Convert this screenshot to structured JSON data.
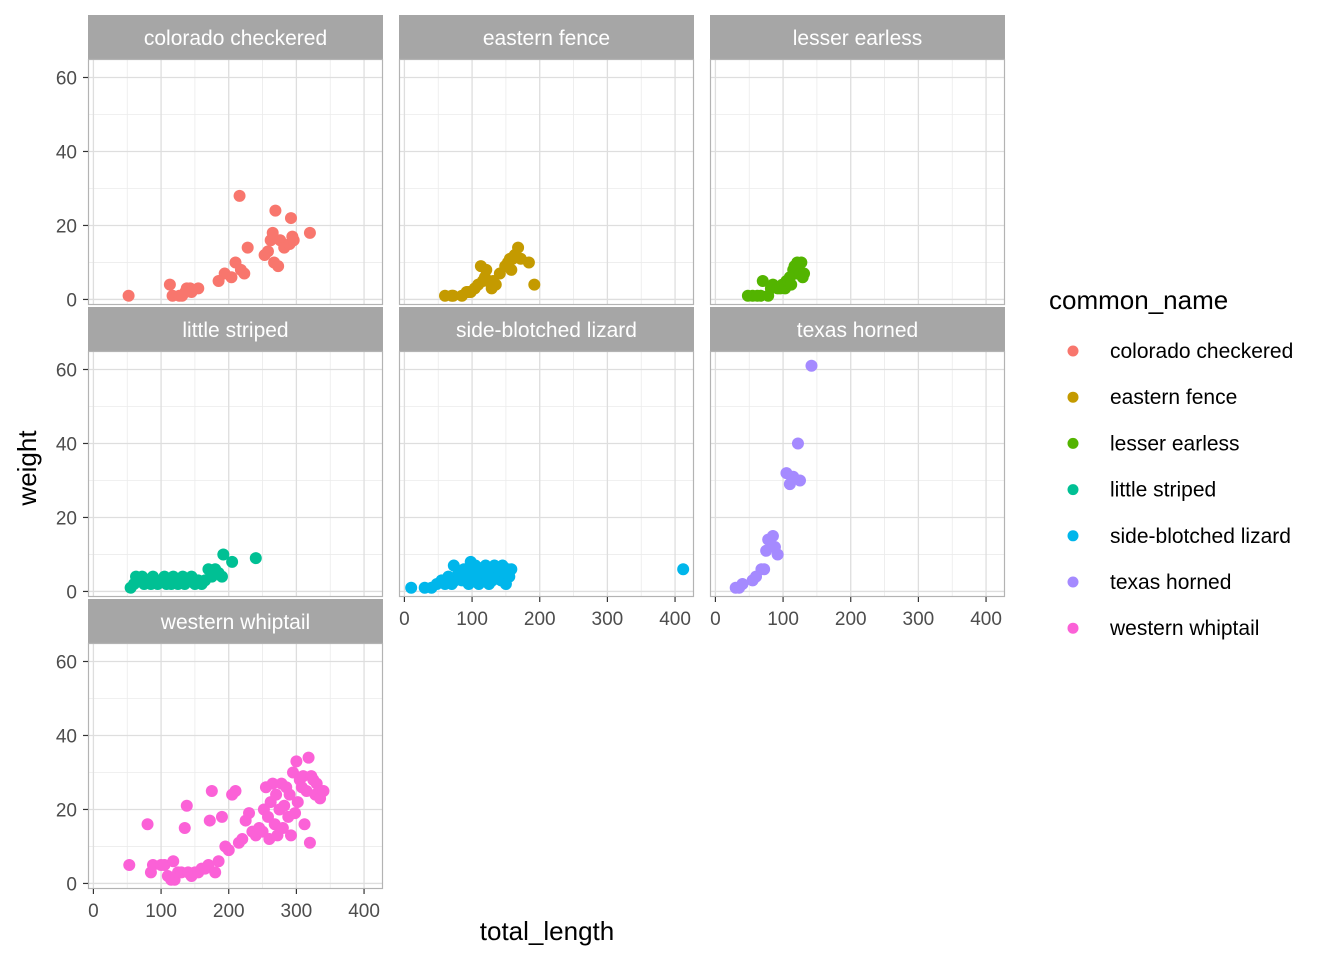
{
  "chart_data": {
    "type": "scatter",
    "xlabel": "total_length",
    "ylabel": "weight",
    "xlim": [
      -8,
      428
    ],
    "ylim": [
      -1.5,
      65
    ],
    "xticks": [
      0,
      100,
      200,
      300,
      400
    ],
    "yticks": [
      0,
      20,
      40,
      60
    ],
    "grid": true,
    "legend": {
      "title": "common_name",
      "position": "right"
    },
    "series": [
      {
        "name": "colorado checkered",
        "color": "#F8766D",
        "points": [
          [
            52,
            1
          ],
          [
            113,
            4
          ],
          [
            117,
            1
          ],
          [
            127,
            1
          ],
          [
            131,
            1
          ],
          [
            136,
            2
          ],
          [
            138,
            3
          ],
          [
            143,
            3
          ],
          [
            145,
            2
          ],
          [
            155,
            3
          ],
          [
            185,
            5
          ],
          [
            194,
            7
          ],
          [
            204,
            6
          ],
          [
            210,
            10
          ],
          [
            216,
            28
          ],
          [
            218,
            8
          ],
          [
            223,
            7
          ],
          [
            228,
            14
          ],
          [
            253,
            12
          ],
          [
            258,
            13
          ],
          [
            262,
            16
          ],
          [
            265,
            18
          ],
          [
            267,
            10
          ],
          [
            269,
            24
          ],
          [
            273,
            9
          ],
          [
            276,
            16
          ],
          [
            282,
            14
          ],
          [
            290,
            15
          ],
          [
            292,
            22
          ],
          [
            294,
            17
          ],
          [
            296,
            16
          ],
          [
            320,
            18
          ]
        ]
      },
      {
        "name": "eastern fence",
        "color": "#C49A00",
        "points": [
          [
            60,
            1
          ],
          [
            70,
            1
          ],
          [
            72,
            1
          ],
          [
            85,
            1
          ],
          [
            92,
            2
          ],
          [
            95,
            2
          ],
          [
            98,
            2
          ],
          [
            104,
            3
          ],
          [
            109,
            4
          ],
          [
            113,
            9
          ],
          [
            116,
            5
          ],
          [
            119,
            6
          ],
          [
            121,
            8
          ],
          [
            124,
            5
          ],
          [
            129,
            3
          ],
          [
            131,
            5
          ],
          [
            135,
            4
          ],
          [
            141,
            7
          ],
          [
            149,
            9
          ],
          [
            153,
            10
          ],
          [
            156,
            11
          ],
          [
            158,
            8
          ],
          [
            160,
            11
          ],
          [
            163,
            12
          ],
          [
            168,
            14
          ],
          [
            172,
            11
          ],
          [
            184,
            10
          ],
          [
            192,
            4
          ]
        ]
      },
      {
        "name": "lesser earless",
        "color": "#53B400",
        "points": [
          [
            48,
            1
          ],
          [
            55,
            1
          ],
          [
            62,
            1
          ],
          [
            67,
            1
          ],
          [
            70,
            5
          ],
          [
            78,
            1
          ],
          [
            82,
            3
          ],
          [
            85,
            4
          ],
          [
            92,
            3
          ],
          [
            96,
            3
          ],
          [
            99,
            4
          ],
          [
            103,
            3
          ],
          [
            105,
            5
          ],
          [
            108,
            5
          ],
          [
            110,
            6
          ],
          [
            112,
            4
          ],
          [
            115,
            8
          ],
          [
            117,
            9
          ],
          [
            119,
            7
          ],
          [
            121,
            10
          ],
          [
            123,
            8
          ],
          [
            125,
            7
          ],
          [
            127,
            10
          ],
          [
            129,
            6
          ],
          [
            131,
            7
          ]
        ]
      },
      {
        "name": "little striped",
        "color": "#00C094",
        "points": [
          [
            55,
            1
          ],
          [
            60,
            2
          ],
          [
            63,
            4
          ],
          [
            68,
            3
          ],
          [
            72,
            4
          ],
          [
            75,
            2
          ],
          [
            80,
            3
          ],
          [
            85,
            2
          ],
          [
            88,
            4
          ],
          [
            92,
            3
          ],
          [
            95,
            2
          ],
          [
            100,
            3
          ],
          [
            105,
            4
          ],
          [
            108,
            2
          ],
          [
            112,
            3
          ],
          [
            115,
            2
          ],
          [
            118,
            4
          ],
          [
            122,
            3
          ],
          [
            125,
            2
          ],
          [
            128,
            3
          ],
          [
            132,
            4
          ],
          [
            135,
            2
          ],
          [
            140,
            3
          ],
          [
            145,
            4
          ],
          [
            150,
            2
          ],
          [
            155,
            3
          ],
          [
            160,
            2
          ],
          [
            165,
            3
          ],
          [
            170,
            6
          ],
          [
            175,
            4
          ],
          [
            180,
            6
          ],
          [
            185,
            5
          ],
          [
            190,
            4
          ],
          [
            192,
            10
          ],
          [
            205,
            8
          ],
          [
            240,
            9
          ]
        ]
      },
      {
        "name": "side-blotched lizard",
        "color": "#00B6EB",
        "points": [
          [
            10,
            1
          ],
          [
            30,
            1
          ],
          [
            40,
            1
          ],
          [
            48,
            2
          ],
          [
            55,
            3
          ],
          [
            60,
            2
          ],
          [
            65,
            4
          ],
          [
            70,
            2
          ],
          [
            73,
            7
          ],
          [
            75,
            3
          ],
          [
            80,
            5
          ],
          [
            85,
            3
          ],
          [
            88,
            6
          ],
          [
            92,
            4
          ],
          [
            95,
            2
          ],
          [
            98,
            8
          ],
          [
            100,
            5
          ],
          [
            103,
            3
          ],
          [
            105,
            7
          ],
          [
            108,
            4
          ],
          [
            110,
            2
          ],
          [
            113,
            6
          ],
          [
            116,
            3
          ],
          [
            118,
            5
          ],
          [
            120,
            7
          ],
          [
            123,
            4
          ],
          [
            125,
            2
          ],
          [
            128,
            6
          ],
          [
            130,
            3
          ],
          [
            133,
            7
          ],
          [
            135,
            5
          ],
          [
            138,
            4
          ],
          [
            140,
            6
          ],
          [
            143,
            3
          ],
          [
            145,
            7
          ],
          [
            148,
            5
          ],
          [
            150,
            2
          ],
          [
            153,
            6
          ],
          [
            155,
            4
          ],
          [
            158,
            6
          ],
          [
            412,
            6
          ]
        ]
      },
      {
        "name": "texas horned",
        "color": "#A58AFF",
        "points": [
          [
            30,
            1
          ],
          [
            35,
            1
          ],
          [
            40,
            2
          ],
          [
            55,
            3
          ],
          [
            60,
            4
          ],
          [
            68,
            6
          ],
          [
            72,
            6
          ],
          [
            75,
            11
          ],
          [
            78,
            14
          ],
          [
            85,
            15
          ],
          [
            88,
            12
          ],
          [
            92,
            10
          ],
          [
            105,
            32
          ],
          [
            110,
            29
          ],
          [
            115,
            31
          ],
          [
            122,
            40
          ],
          [
            125,
            30
          ],
          [
            142,
            61
          ]
        ]
      },
      {
        "name": "western whiptail",
        "color": "#FB61D7",
        "points": [
          [
            53,
            5
          ],
          [
            80,
            16
          ],
          [
            85,
            3
          ],
          [
            88,
            5
          ],
          [
            100,
            5
          ],
          [
            105,
            5
          ],
          [
            110,
            2
          ],
          [
            115,
            1
          ],
          [
            118,
            6
          ],
          [
            120,
            1
          ],
          [
            125,
            3
          ],
          [
            130,
            3
          ],
          [
            135,
            15
          ],
          [
            138,
            21
          ],
          [
            140,
            3
          ],
          [
            145,
            2
          ],
          [
            150,
            3
          ],
          [
            155,
            3
          ],
          [
            160,
            4
          ],
          [
            165,
            4
          ],
          [
            170,
            5
          ],
          [
            172,
            17
          ],
          [
            175,
            25
          ],
          [
            180,
            3
          ],
          [
            185,
            6
          ],
          [
            190,
            18
          ],
          [
            195,
            10
          ],
          [
            200,
            9
          ],
          [
            205,
            24
          ],
          [
            210,
            25
          ],
          [
            215,
            11
          ],
          [
            220,
            12
          ],
          [
            225,
            17
          ],
          [
            230,
            19
          ],
          [
            235,
            14
          ],
          [
            240,
            13
          ],
          [
            245,
            15
          ],
          [
            250,
            14
          ],
          [
            252,
            20
          ],
          [
            255,
            26
          ],
          [
            258,
            18
          ],
          [
            260,
            12
          ],
          [
            262,
            22
          ],
          [
            265,
            27
          ],
          [
            268,
            16
          ],
          [
            270,
            24
          ],
          [
            272,
            13
          ],
          [
            275,
            20
          ],
          [
            278,
            27
          ],
          [
            280,
            15
          ],
          [
            282,
            21
          ],
          [
            285,
            26
          ],
          [
            288,
            18
          ],
          [
            290,
            24
          ],
          [
            292,
            13
          ],
          [
            295,
            30
          ],
          [
            298,
            19
          ],
          [
            300,
            33
          ],
          [
            302,
            22
          ],
          [
            305,
            28
          ],
          [
            308,
            26
          ],
          [
            310,
            29
          ],
          [
            312,
            16
          ],
          [
            315,
            25
          ],
          [
            318,
            34
          ],
          [
            320,
            11
          ],
          [
            322,
            29
          ],
          [
            325,
            28
          ],
          [
            328,
            24
          ],
          [
            330,
            27
          ],
          [
            335,
            23
          ],
          [
            340,
            25
          ]
        ]
      }
    ]
  }
}
